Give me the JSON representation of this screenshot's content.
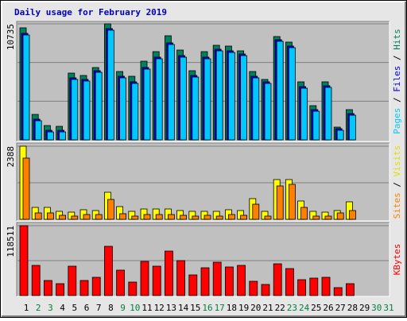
{
  "chart_data": {
    "type": "bar",
    "title": "Daily usage for February 2019",
    "categories": [
      "1",
      "2",
      "3",
      "4",
      "5",
      "6",
      "7",
      "8",
      "9",
      "10",
      "11",
      "12",
      "13",
      "14",
      "15",
      "16",
      "17",
      "18",
      "19",
      "20",
      "21",
      "22",
      "23",
      "24",
      "25",
      "26",
      "27",
      "28",
      "29",
      "30",
      "31"
    ],
    "category_colors": [
      "#000000",
      "#008040",
      "#008040",
      "#000000",
      "#000000",
      "#000000",
      "#000000",
      "#000000",
      "#008040",
      "#008040",
      "#000000",
      "#000000",
      "#000000",
      "#000000",
      "#000000",
      "#008040",
      "#008040",
      "#000000",
      "#000000",
      "#000000",
      "#000000",
      "#000000",
      "#008040",
      "#008040",
      "#000000",
      "#000000",
      "#000000",
      "#000000",
      "#000000",
      "#008040",
      "#008040"
    ],
    "legend_separator": " / ",
    "panels": [
      {
        "ylim": [
          0,
          10735
        ],
        "yticks": [
          10735
        ],
        "series": [
          {
            "name": "Hits",
            "color": "#00805c",
            "values": [
              10367,
              2353,
              1324,
              1250,
              6176,
              5956,
              6691,
              10735,
              6323,
              5882,
              7279,
              8162,
              9632,
              8309,
              6397,
              8162,
              8750,
              8676,
              8235,
              6323,
              5588,
              9559,
              9044,
              5368,
              3162,
              5368,
              1176,
              2794,
              null,
              null,
              null
            ]
          },
          {
            "name": "Files",
            "color": "#0000ff",
            "values": [
              9856,
              1915,
              885,
              885,
              5738,
              5591,
              6400,
              10297,
              5885,
              5371,
              6694,
              7650,
              8974,
              7797,
              5959,
              7650,
              8385,
              8238,
              7944,
              5885,
              5371,
              9268,
              8679,
              4929,
              2797,
              5003,
              1032,
              2429,
              null,
              null,
              null
            ]
          },
          {
            "name": "Pages",
            "color": "#00c8ff",
            "values": [
              9706,
              1765,
              735,
              735,
              5588,
              5441,
              6250,
              10147,
              5735,
              5221,
              6544,
              7500,
              8824,
              7647,
              5809,
              7500,
              8235,
              8088,
              7794,
              5735,
              5221,
              9118,
              8529,
              4779,
              2647,
              4853,
              882,
              2279,
              null,
              null,
              null
            ]
          }
        ]
      },
      {
        "ylim": [
          0,
          2388
        ],
        "yticks": [
          2388
        ],
        "series": [
          {
            "name": "Visits",
            "color": "#ffff00",
            "values": [
              2388,
              389,
              389,
              260,
              234,
              312,
              286,
              883,
              415,
              260,
              337,
              337,
              337,
              286,
              260,
              260,
              260,
              312,
              286,
              675,
              260,
              1298,
              1298,
              597,
              260,
              234,
              286,
              571,
              null,
              null,
              null
            ]
          },
          {
            "name": "Sites",
            "color": "#ff8000",
            "values": [
              1999,
              208,
              208,
              130,
              104,
              156,
              156,
              649,
              182,
              104,
              156,
              156,
              156,
              130,
              104,
              130,
              104,
              156,
              130,
              493,
              104,
              1090,
              1142,
              389,
              104,
              104,
              208,
              286,
              null,
              null,
              null
            ]
          }
        ]
      },
      {
        "ylim": [
          0,
          118511
        ],
        "yticks": [
          118511
        ],
        "series": [
          {
            "name": "KBytes",
            "color": "#ff0000",
            "values": [
              118511,
              51175,
              25587,
              20200,
              49828,
              25587,
              30974,
              83497,
              43095,
              22894,
              57908,
              49828,
              75416,
              59255,
              35014,
              47135,
              56561,
              48481,
              51175,
              24241,
              18854,
              53868,
              45788,
              26934,
              29628,
              30974,
              13467,
              20200,
              null,
              null,
              null
            ]
          }
        ]
      }
    ]
  }
}
